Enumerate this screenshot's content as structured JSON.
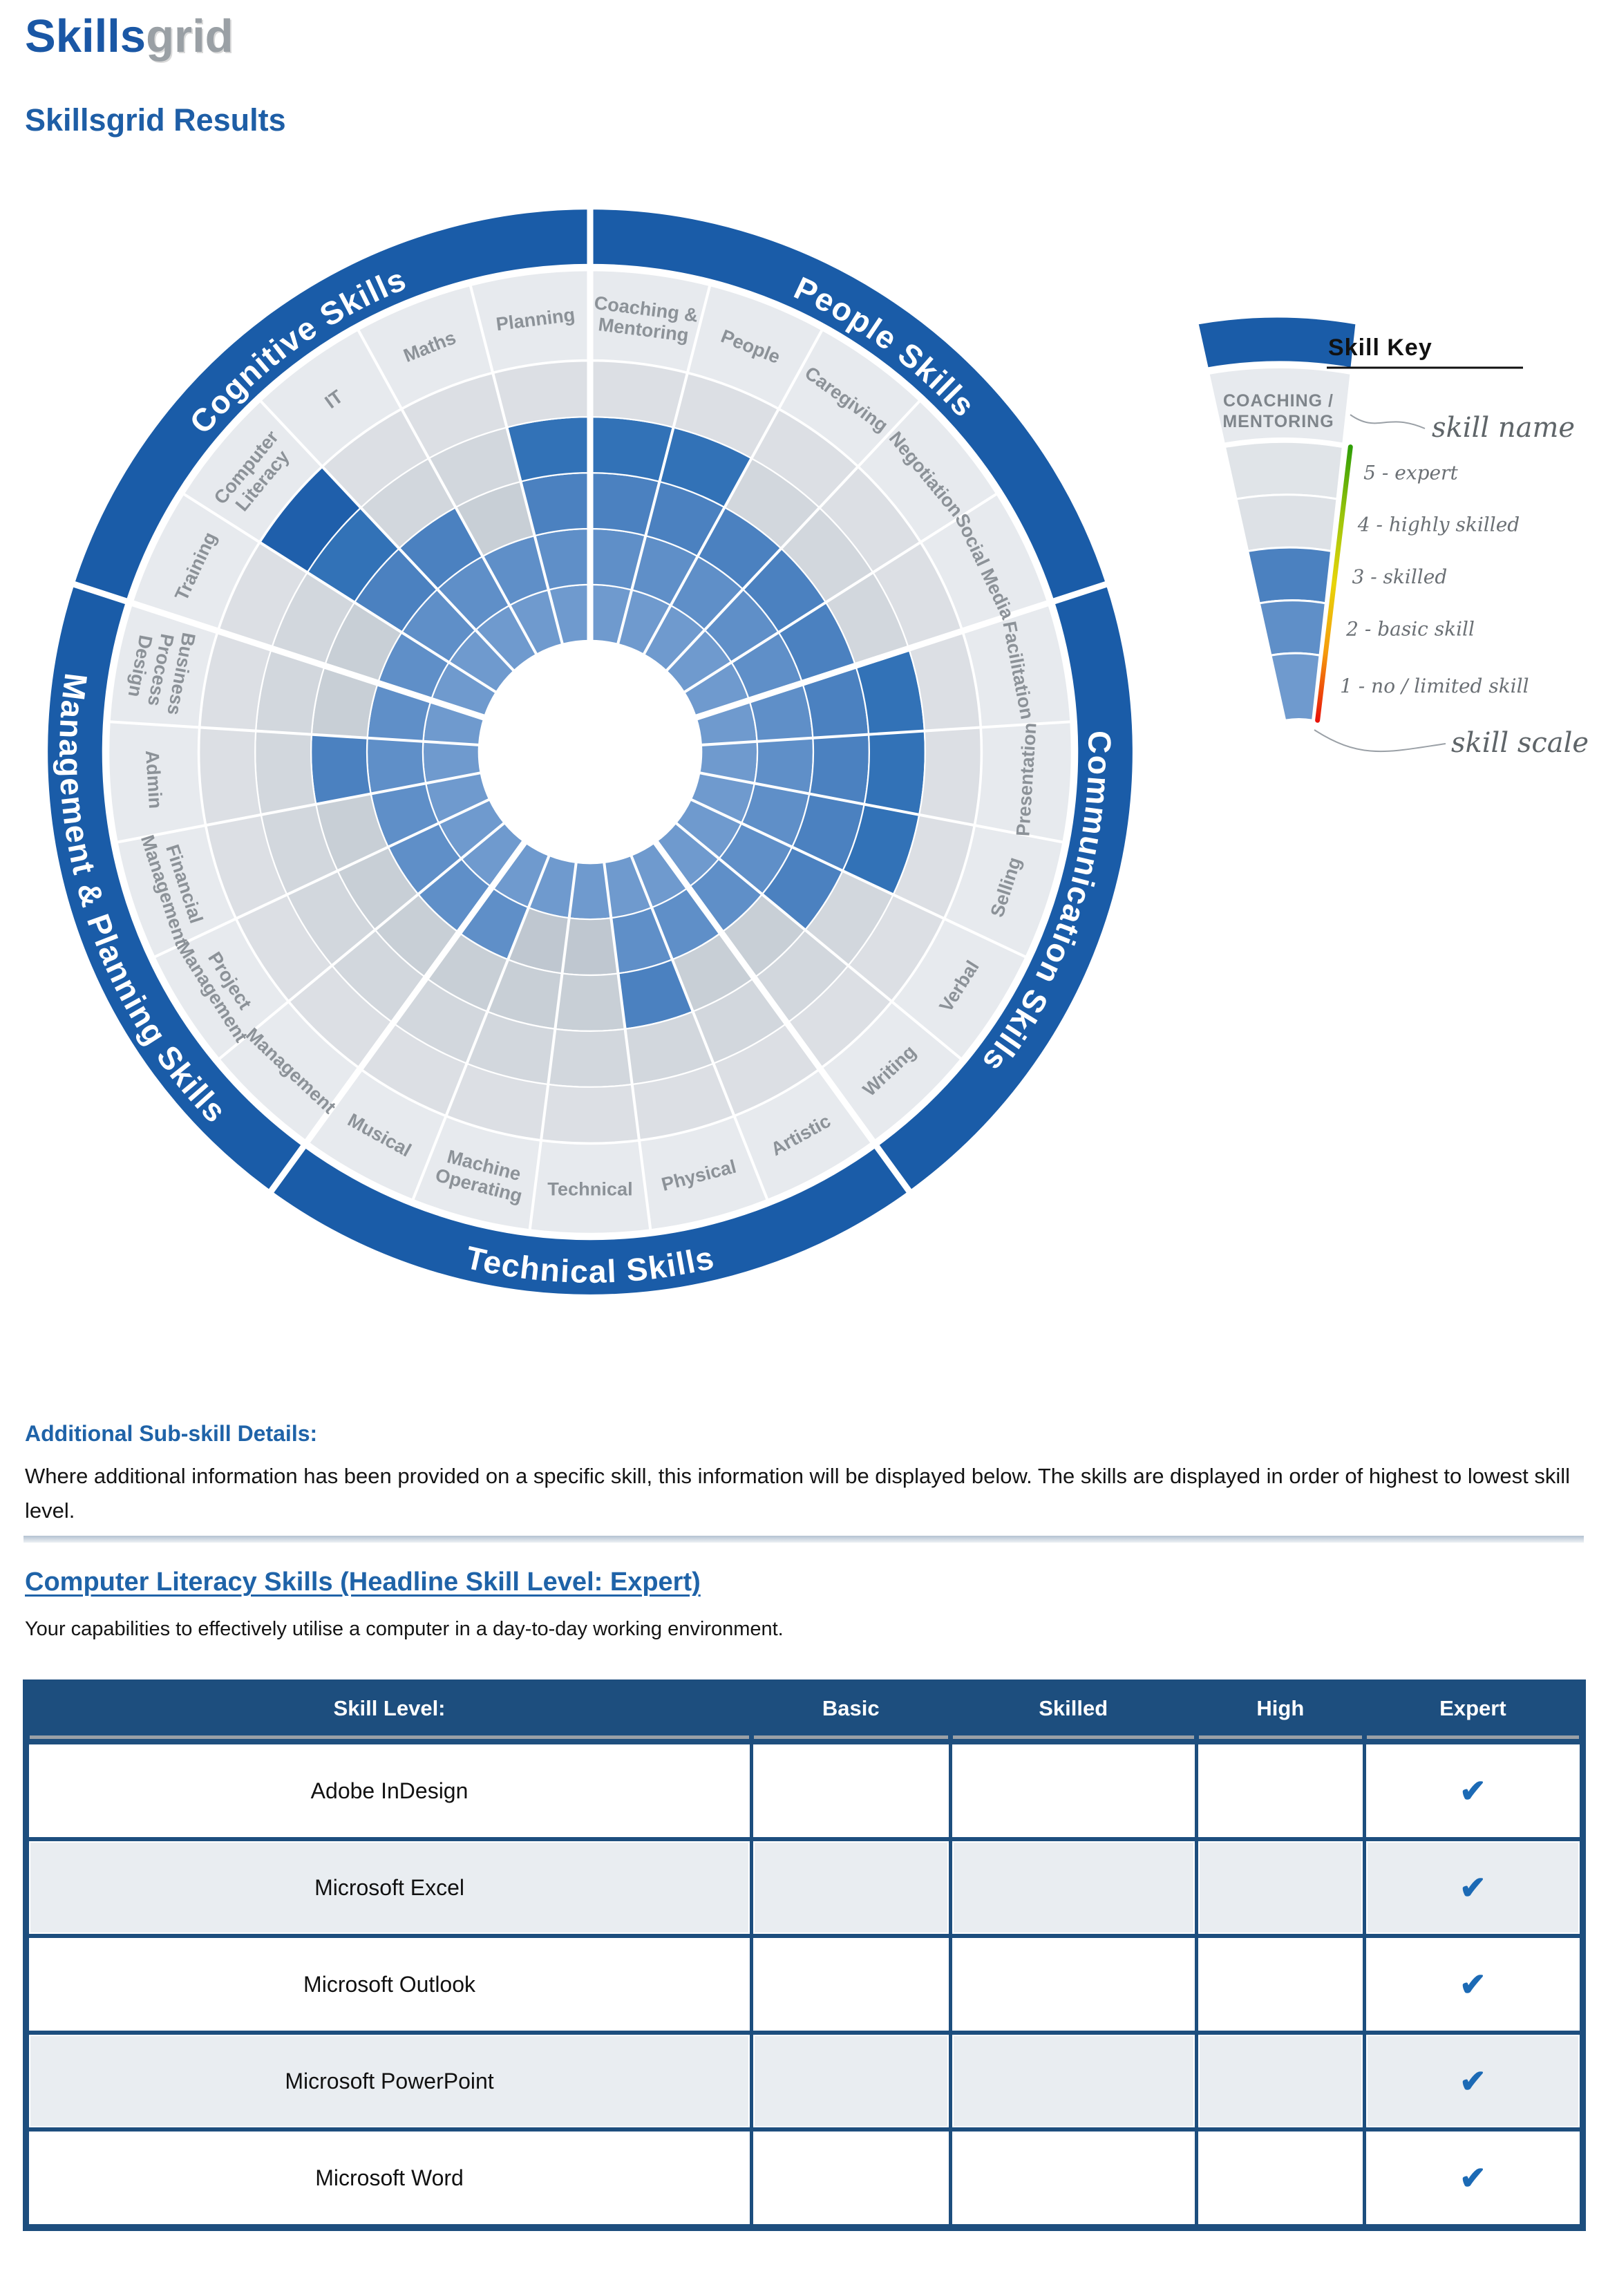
{
  "logo": {
    "part1": "Skills",
    "part2": "grid"
  },
  "page_title": "Skillsgrid Results",
  "chart_data": {
    "type": "radial-skill-wheel",
    "scale": {
      "min": 0,
      "max": 5,
      "rings": 5
    },
    "legend_position": "top-right",
    "categories": [
      {
        "name": "People Skills",
        "skills": [
          {
            "name": "Coaching & Mentoring",
            "lines": [
              "Coaching &",
              "Mentoring"
            ],
            "level": 4
          },
          {
            "name": "People",
            "lines": [
              "People"
            ],
            "level": 4
          },
          {
            "name": "Caregiving",
            "lines": [
              "Caregiving"
            ],
            "level": 3
          },
          {
            "name": "Negotiation",
            "lines": [
              "Negotiation"
            ],
            "level": 3
          },
          {
            "name": "Social Media",
            "lines": [
              "Social Media"
            ],
            "level": 3
          }
        ]
      },
      {
        "name": "Communication Skills",
        "skills": [
          {
            "name": "Facilitation",
            "lines": [
              "Facilitation"
            ],
            "level": 4
          },
          {
            "name": "Presentation",
            "lines": [
              "Presentation"
            ],
            "level": 4
          },
          {
            "name": "Selling",
            "lines": [
              "Selling"
            ],
            "level": 4
          },
          {
            "name": "Verbal",
            "lines": [
              "Verbal"
            ],
            "level": 3
          },
          {
            "name": "Writing",
            "lines": [
              "Writing"
            ],
            "level": 2
          }
        ]
      },
      {
        "name": "Technical Skills",
        "skills": [
          {
            "name": "Artistic",
            "lines": [
              "Artistic"
            ],
            "level": 2
          },
          {
            "name": "Physical",
            "lines": [
              "Physical"
            ],
            "level": 3
          },
          {
            "name": "Technical",
            "lines": [
              "Technical"
            ],
            "level": 1
          },
          {
            "name": "Machine Operating",
            "lines": [
              "Machine",
              "Operating"
            ],
            "level": 1
          },
          {
            "name": "Musical",
            "lines": [
              "Musical"
            ],
            "level": 2
          }
        ]
      },
      {
        "name": "Management & Planning Skills",
        "skills": [
          {
            "name": "Management",
            "lines": [
              "Management"
            ],
            "level": 2
          },
          {
            "name": "Project Management",
            "lines": [
              "Project",
              "Management"
            ],
            "level": 2
          },
          {
            "name": "Financial Management",
            "lines": [
              "Financial",
              "Management"
            ],
            "level": 2
          },
          {
            "name": "Admin",
            "lines": [
              "Admin"
            ],
            "level": 3
          },
          {
            "name": "Business Process Design",
            "lines": [
              "Business",
              "Process",
              "Design"
            ],
            "level": 2
          }
        ]
      },
      {
        "name": "Cognitive Skills",
        "skills": [
          {
            "name": "Training",
            "lines": [
              "Training"
            ],
            "level": 2
          },
          {
            "name": "Computer Literacy",
            "lines": [
              "Computer",
              "Literacy"
            ],
            "level": 5
          },
          {
            "name": "IT",
            "lines": [
              "IT"
            ],
            "level": 3
          },
          {
            "name": "Maths",
            "lines": [
              "Maths"
            ],
            "level": 2
          },
          {
            "name": "Planning",
            "lines": [
              "Planning"
            ],
            "level": 4
          }
        ]
      }
    ]
  },
  "skill_key": {
    "title": "Skill Key",
    "example_skill_lines": [
      "COACHING /",
      "MENTORING"
    ],
    "skill_name_label": "skill name",
    "skill_scale_label": "skill scale",
    "levels": [
      "5 - expert",
      "4 - highly skilled",
      "3 - skilled",
      "2 - basic skill",
      "1 - no / limited skill"
    ]
  },
  "details": {
    "heading": "Additional Sub-skill Details:",
    "paragraph": "Where additional information has been provided on a specific skill, this information will be displayed below. The skills are displayed in order of highest to lowest skill level."
  },
  "section": {
    "heading": "Computer Literacy Skills (Headline Skill Level: Expert)",
    "description": "Your capabilities to effectively utilise a computer in a day-to-day working environment."
  },
  "table": {
    "header": [
      "Skill Level:",
      "Basic",
      "Skilled",
      "High",
      "Expert"
    ],
    "check_glyph": "✔",
    "rows": [
      {
        "name": "Adobe InDesign",
        "level": "Expert"
      },
      {
        "name": "Microsoft Excel",
        "level": "Expert"
      },
      {
        "name": "Microsoft Outlook",
        "level": "Expert"
      },
      {
        "name": "Microsoft PowerPoint",
        "level": "Expert"
      },
      {
        "name": "Microsoft Word",
        "level": "Expert"
      }
    ]
  },
  "colors": {
    "brand_blue": "#1a57a5",
    "logo_gray": "#9aa0a5",
    "heading_blue": "#1f63a8",
    "category_band": "#1a5ca8",
    "category_text": "#ffffff",
    "label_band": "#e7eaee",
    "skill_label_text": "#8c9298",
    "gray_rings": [
      "#b9c2cb",
      "#bfc7d0",
      "#c8cfd6",
      "#d2d7dd",
      "#dcdfe4"
    ],
    "blue_rings": [
      "#6f9ace",
      "#5f8fc8",
      "#4b81c0",
      "#3272b7",
      "#1f5fab"
    ],
    "key_label_text": "#6b7075",
    "key_example_text": "#7f858b",
    "key_scale_stops": [
      "#2f9e06",
      "#9ac40b",
      "#e8d40a",
      "#f59b0c",
      "#e81309"
    ],
    "table_header_bg": "#1d4e7e",
    "table_row_alt_bg": "#e9edf1",
    "check_blue": "#1c6ab5"
  }
}
